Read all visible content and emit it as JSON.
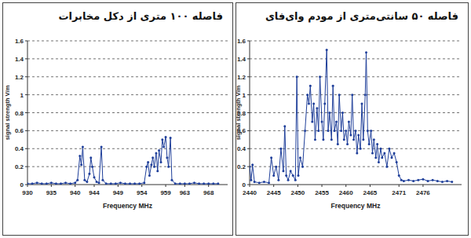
{
  "chart_data": [
    {
      "type": "line",
      "title": "فاصله ۱۰۰ متری از دکل مخابرات",
      "x_label": "Frequency MHz",
      "y_label": "signal strength V/m",
      "color": "#1f3f9a",
      "marker": "circle",
      "grid": true,
      "xlim": [
        930,
        972
      ],
      "ylim": [
        0,
        1.6
      ],
      "xticks": [
        930,
        935,
        940,
        944,
        949,
        954,
        959,
        963,
        968
      ],
      "yticks": [
        0,
        0.2,
        0.4,
        0.6,
        0.8,
        1,
        1.2,
        1.4,
        1.6
      ],
      "x": [
        930,
        931,
        932,
        933,
        934,
        935,
        936,
        937,
        938,
        939,
        940,
        940.5,
        941,
        941.3,
        941.6,
        942,
        942.5,
        943,
        943.3,
        943.6,
        944,
        944.5,
        945,
        945.5,
        945.8,
        946.5,
        947.5,
        948.5,
        949.5,
        950.5,
        951.5,
        952.5,
        953.5,
        954.5,
        955,
        955.3,
        955.6,
        956,
        956.3,
        956.6,
        957,
        957.3,
        957.6,
        958,
        958.3,
        958.6,
        959,
        959.3,
        959.6,
        960,
        960.3,
        961,
        962,
        963,
        964,
        965,
        966,
        967,
        968,
        969,
        970
      ],
      "values": [
        0.01,
        0.01,
        0.02,
        0.01,
        0.01,
        0.02,
        0.01,
        0.01,
        0.02,
        0.01,
        0.02,
        0.05,
        0.32,
        0.22,
        0.42,
        0.05,
        0.03,
        0.12,
        0.3,
        0.2,
        0.08,
        0.03,
        0.02,
        0.42,
        0.05,
        0.01,
        0.01,
        0.01,
        0.02,
        0.01,
        0.01,
        0.01,
        0.01,
        0.02,
        0.2,
        0.25,
        0.1,
        0.22,
        0.3,
        0.2,
        0.35,
        0.15,
        0.38,
        0.25,
        0.5,
        0.42,
        0.53,
        0.3,
        0.2,
        0.52,
        0.05,
        0.01,
        0.01,
        0.01,
        0.01,
        0.02,
        0.01,
        0.01,
        0.01,
        0.01,
        0.01
      ]
    },
    {
      "type": "line",
      "title": "فاصله ۵۰ سانتی‌متری از مودم وای‌فای",
      "x_label": "Frequency MHz",
      "y_label": "signal strength V/m",
      "color": "#1f3f9a",
      "marker": "circle",
      "grid": true,
      "xlim": [
        2440,
        2484
      ],
      "ylim": [
        0,
        1.6
      ],
      "xticks": [
        2440,
        2445,
        2450,
        2455,
        2460,
        2465,
        2471,
        2476
      ],
      "yticks": [
        0,
        0.2,
        0.4,
        0.6,
        0.8,
        1,
        1.2,
        1.4,
        1.6
      ],
      "x": [
        2440,
        2440.3,
        2440.6,
        2441,
        2442,
        2443,
        2444,
        2444.5,
        2445,
        2445.5,
        2446,
        2446.5,
        2447,
        2447.3,
        2447.6,
        2448,
        2448.5,
        2449,
        2449.5,
        2449.8,
        2450.1,
        2450.5,
        2451,
        2451.5,
        2452,
        2452.3,
        2452.6,
        2453,
        2453.3,
        2453.6,
        2454,
        2454.3,
        2454.6,
        2455,
        2455.3,
        2455.6,
        2456,
        2456.3,
        2456.6,
        2457,
        2457.3,
        2457.6,
        2458,
        2458.3,
        2458.6,
        2459,
        2459.3,
        2459.6,
        2460,
        2460.3,
        2460.6,
        2461,
        2461.3,
        2461.6,
        2462,
        2462.3,
        2462.6,
        2463,
        2463.3,
        2463.6,
        2464,
        2464.2,
        2464.5,
        2464.8,
        2465.2,
        2465.5,
        2465.8,
        2466.2,
        2466.5,
        2466.8,
        2467.2,
        2467.5,
        2468,
        2468.5,
        2469,
        2469.5,
        2470,
        2470.5,
        2471,
        2471.5,
        2472,
        2473,
        2474,
        2475,
        2476,
        2477,
        2478,
        2479,
        2480,
        2481,
        2482
      ],
      "values": [
        0.2,
        0.05,
        0.22,
        0.03,
        0.02,
        0.03,
        0.02,
        0.3,
        0.1,
        0.2,
        0.05,
        0.4,
        0.15,
        0.65,
        0.1,
        0.05,
        0.15,
        0.1,
        0.05,
        1.2,
        0.1,
        0.3,
        0.2,
        0.6,
        1.0,
        0.9,
        1.1,
        0.7,
        0.9,
        0.5,
        0.85,
        0.6,
        1.2,
        0.7,
        0.5,
        0.9,
        1.5,
        0.6,
        0.8,
        0.5,
        1.1,
        0.6,
        0.7,
        0.45,
        1.0,
        0.6,
        0.8,
        0.5,
        0.6,
        0.45,
        0.7,
        0.55,
        1.0,
        0.5,
        0.6,
        0.35,
        0.55,
        0.4,
        0.9,
        0.5,
        1.0,
        1.47,
        0.6,
        0.45,
        0.6,
        0.35,
        0.5,
        0.3,
        0.45,
        0.25,
        0.4,
        0.3,
        0.35,
        0.2,
        0.4,
        0.3,
        0.35,
        0.25,
        0.1,
        0.05,
        0.04,
        0.05,
        0.04,
        0.05,
        0.06,
        0.04,
        0.05,
        0.04,
        0.03,
        0.04,
        0.03
      ]
    }
  ]
}
